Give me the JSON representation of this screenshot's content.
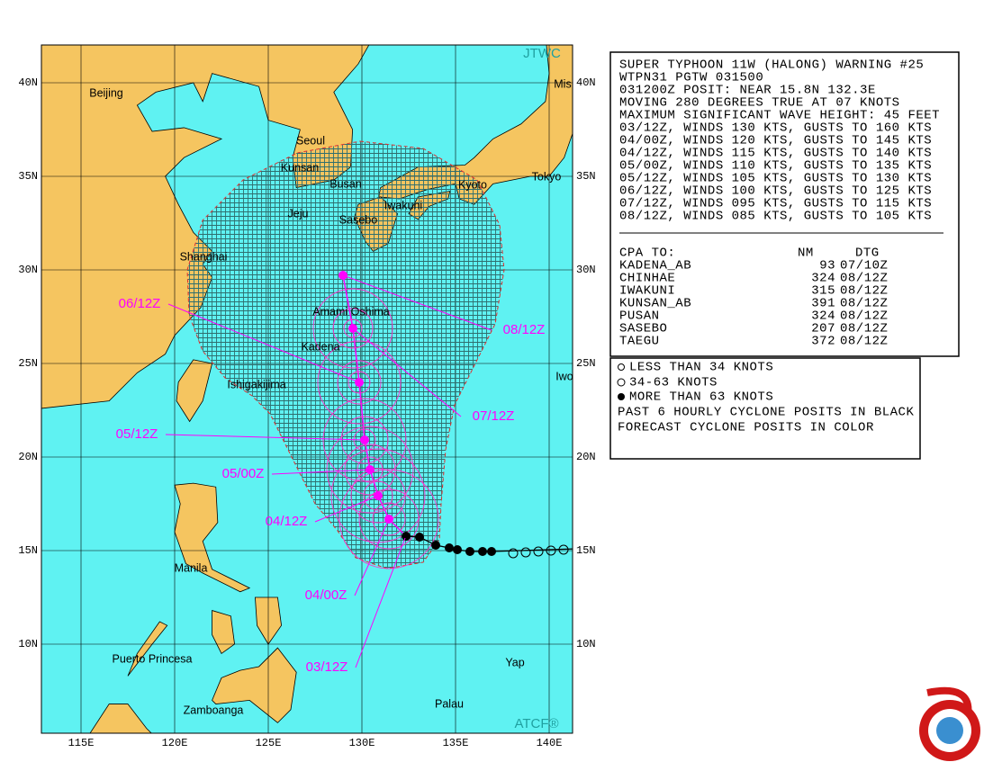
{
  "map": {
    "brand_top": "JTWC",
    "brand_bottom": "ATCF®",
    "lat_labels": [
      "40N",
      "35N",
      "30N",
      "25N",
      "20N",
      "15N",
      "10N"
    ],
    "lon_labels": [
      "115E",
      "120E",
      "125E",
      "130E",
      "135E",
      "140E"
    ],
    "places": [
      "Beijing",
      "Seoul",
      "Kunsan",
      "Busan",
      "Jeju",
      "Sasebo",
      "Iwakuni",
      "Kyoto",
      "Tokyo",
      "Mis",
      "Shanghai",
      "Amami Oshima",
      "Kadena",
      "Ishigakijima",
      "Iwo",
      "Manila",
      "Puerto Princesa",
      "Zamboanga",
      "Palau",
      "Yap"
    ],
    "forecast_labels": [
      "03/12Z",
      "04/00Z",
      "04/12Z",
      "05/00Z",
      "05/12Z",
      "06/12Z",
      "07/12Z",
      "08/12Z"
    ]
  },
  "warning": {
    "lines": [
      "SUPER TYPHOON 11W (HALONG) WARNING #25",
      "WTPN31 PGTW 031500",
      "031200Z POSIT: NEAR 15.8N 132.3E",
      "MOVING 280 DEGREES TRUE AT 07 KNOTS",
      "MAXIMUM SIGNIFICANT WAVE HEIGHT: 45 FEET",
      "03/12Z, WINDS 130 KTS, GUSTS TO 160 KTS",
      "04/00Z, WINDS 120 KTS, GUSTS TO 145 KTS",
      "04/12Z, WINDS 115 KTS, GUSTS TO 140 KTS",
      "05/00Z, WINDS 110 KTS, GUSTS TO 135 KTS",
      "05/12Z, WINDS 105 KTS, GUSTS TO 130 KTS",
      "06/12Z, WINDS 100 KTS, GUSTS TO 125 KTS",
      "07/12Z, WINDS 095 KTS, GUSTS TO 115 KTS",
      "08/12Z, WINDS 085 KTS, GUSTS TO 105 KTS"
    ],
    "cpa_header": [
      "CPA TO:",
      "NM",
      "DTG"
    ],
    "cpa_rows": [
      [
        "KADENA_AB",
        "93",
        "07/10Z"
      ],
      [
        "CHINHAE",
        "324",
        "08/12Z"
      ],
      [
        "IWAKUNI",
        "315",
        "08/12Z"
      ],
      [
        "KUNSAN_AB",
        "391",
        "08/12Z"
      ],
      [
        "PUSAN",
        "324",
        "08/12Z"
      ],
      [
        "SASEBO",
        "207",
        "08/12Z"
      ],
      [
        "TAEGU",
        "372",
        "08/12Z"
      ]
    ]
  },
  "legend": {
    "lines": [
      "LESS THAN 34 KNOTS",
      "34-63 KNOTS",
      "MORE THAN 63 KNOTS",
      "PAST 6 HOURLY CYCLONE POSITS IN BLACK",
      "FORECAST CYCLONE POSITS IN COLOR"
    ]
  }
}
